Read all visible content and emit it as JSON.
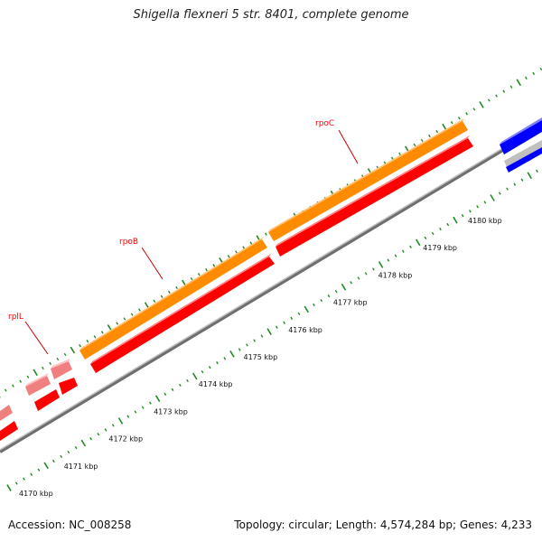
{
  "title": "Shigella flexneri 5 str. 8401, complete genome",
  "footer": {
    "accession_label": "Accession: NC_008258",
    "summary": "Topology: circular; Length: 4,574,284 bp; Genes: 4,233"
  },
  "colors": {
    "forward_gene": "#ff8c00",
    "reverse_gene": "#ff0000",
    "reverse_gene_light": "#f08080",
    "forward_gene_light": "#f4a0a0",
    "other_gene": "#0000ff",
    "backbone": "#808080",
    "tick_mark": "#228b22",
    "gene_label": "#ff0000"
  },
  "ruler": {
    "labels": [
      "4170 kbp",
      "4171 kbp",
      "4172 kbp",
      "4173 kbp",
      "4174 kbp",
      "4175 kbp",
      "4176 kbp",
      "4177 kbp",
      "4178 kbp",
      "4179 kbp",
      "4180 kbp"
    ]
  },
  "genes": [
    {
      "name": "rpoC",
      "strand": "forward"
    },
    {
      "name": "rpoB",
      "strand": "forward"
    },
    {
      "name": "rplL",
      "strand": "forward"
    }
  ]
}
